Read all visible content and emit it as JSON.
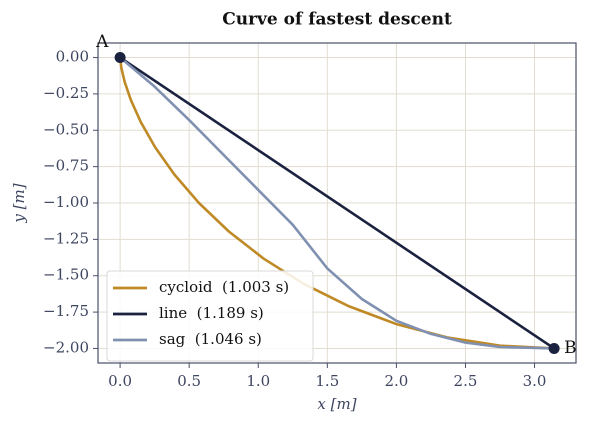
{
  "chart_data": {
    "type": "line",
    "title": "Curve of fastest descent",
    "xlabel": "x  [m]",
    "ylabel": "y  [m]",
    "xlim": [
      -0.16,
      3.3
    ],
    "ylim": [
      -2.1,
      0.1
    ],
    "xticks": [
      {
        "value": 0,
        "label": "0.0"
      },
      {
        "value": 0.5,
        "label": "0.5"
      },
      {
        "value": 1,
        "label": "1.0"
      },
      {
        "value": 1.5,
        "label": "1.5"
      },
      {
        "value": 2,
        "label": "2.0"
      },
      {
        "value": 2.5,
        "label": "2.5"
      },
      {
        "value": 3,
        "label": "3.0"
      }
    ],
    "yticks": [
      {
        "value": 0,
        "label": "0.00"
      },
      {
        "value": -0.25,
        "label": "−0.25"
      },
      {
        "value": -0.5,
        "label": "−0.50"
      },
      {
        "value": -0.75,
        "label": "−0.75"
      },
      {
        "value": -1,
        "label": "−1.00"
      },
      {
        "value": -1.25,
        "label": "−1.25"
      },
      {
        "value": -1.5,
        "label": "−1.50"
      },
      {
        "value": -1.75,
        "label": "−1.75"
      },
      {
        "value": -2,
        "label": "−2.00"
      }
    ],
    "grid": true,
    "legend": "lower left",
    "series": [
      {
        "name": "cycloid  (1.003 s)",
        "color": "#bf8a26",
        "x": [
          0,
          0.00125,
          0.01,
          0.0334,
          0.0783,
          0.1502,
          0.2542,
          0.3936,
          0.5708,
          0.7863,
          1.0396,
          1.3283,
          1.6491,
          1.9969,
          2.3662,
          2.7501,
          3.1416
        ],
        "values": [
          0,
          -0.0192,
          -0.0761,
          -0.1685,
          -0.2929,
          -0.4444,
          -0.6173,
          -0.8049,
          -1,
          -1.1951,
          -1.3827,
          -1.5556,
          -1.7071,
          -1.8315,
          -1.9239,
          -1.9808,
          -2
        ]
      },
      {
        "name": "line  (1.189 s)",
        "color": "#1a2240",
        "x": [
          0,
          3.1416
        ],
        "values": [
          0,
          -2
        ]
      },
      {
        "name": "sag  (1.046 s)",
        "color": "#8090b0",
        "x": [
          0,
          0.25,
          0.5,
          0.75,
          1.0,
          1.25,
          1.5,
          1.75,
          2.0,
          2.25,
          2.5,
          2.75,
          3.1416
        ],
        "values": [
          0,
          -0.2,
          -0.43,
          -0.67,
          -0.91,
          -1.15,
          -1.45,
          -1.66,
          -1.81,
          -1.9,
          -1.96,
          -1.99,
          -2
        ]
      }
    ],
    "annotations": [
      {
        "text": "A",
        "x": 0,
        "y": 0,
        "color": "#1a2240"
      },
      {
        "text": "B",
        "x": 3.1416,
        "y": -2,
        "color": "#1a2240"
      }
    ]
  }
}
